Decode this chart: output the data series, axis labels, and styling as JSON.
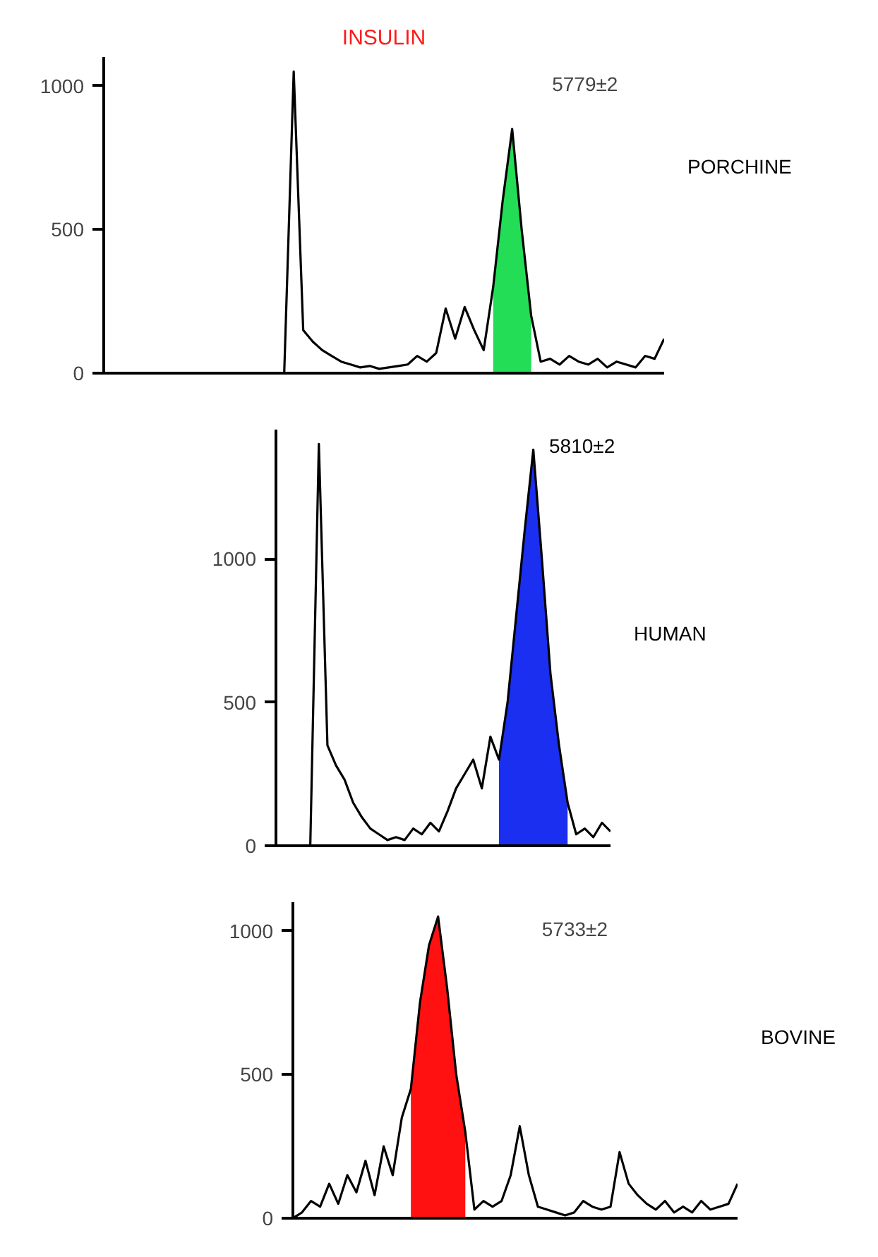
{
  "chart_data": [
    {
      "type": "line",
      "title": "INSULIN",
      "categories": [
        null,
        null,
        null,
        null,
        null,
        null,
        null,
        null,
        null,
        null,
        null,
        null,
        null,
        null,
        null,
        null,
        null,
        null,
        null,
        null,
        null,
        null,
        null,
        null,
        null,
        null,
        null,
        null,
        null,
        null,
        null,
        null,
        null,
        null,
        null,
        null,
        null,
        null,
        null,
        null,
        null,
        null,
        null,
        null,
        null,
        null,
        null,
        null,
        null,
        null,
        null,
        null,
        null,
        null,
        null,
        null,
        null,
        null,
        null,
        null
      ],
      "series": [
        {
          "color": "#22dd55",
          "type": "area",
          "values": [
            null,
            null,
            null,
            null,
            null,
            null,
            null,
            null,
            null,
            null,
            null,
            null,
            null,
            null,
            null,
            null,
            null,
            null,
            null,
            null,
            null,
            null,
            null,
            null,
            null,
            null,
            null,
            null,
            null,
            null,
            null,
            null,
            null,
            null,
            null,
            null,
            null,
            null,
            null,
            null,
            null,
            300,
            600,
            850,
            500,
            200,
            null,
            null,
            null,
            null,
            null,
            null,
            null,
            null,
            null,
            null,
            null,
            null,
            null,
            null
          ]
        },
        {
          "color": "#000000",
          "values": [
            0,
            0,
            0,
            0,
            0,
            0,
            0,
            0,
            0,
            0,
            0,
            0,
            0,
            0,
            0,
            0,
            0,
            0,
            0,
            0,
            1050,
            150,
            110,
            80,
            60,
            40,
            30,
            20,
            25,
            15,
            20,
            25,
            30,
            60,
            40,
            70,
            225,
            120,
            230,
            150,
            80,
            300,
            600,
            850,
            500,
            200,
            40,
            50,
            30,
            60,
            40,
            30,
            50,
            20,
            40,
            30,
            20,
            60,
            50,
            120
          ]
        }
      ],
      "ylim": [
        0,
        1100
      ],
      "yticks": [
        0,
        500,
        1000
      ],
      "tick_labels": "y",
      "grid": false,
      "annotations": [
        "5779±2",
        "PORCHINE"
      ]
    },
    {
      "type": "line",
      "categories": [
        null,
        null,
        null,
        null,
        null,
        null,
        null,
        null,
        null,
        null,
        null,
        null,
        null,
        null,
        null,
        null,
        null,
        null,
        null,
        null,
        null,
        null,
        null,
        null,
        null,
        null,
        null,
        null,
        null,
        null,
        null,
        null,
        null,
        null,
        null,
        null,
        null,
        null,
        null,
        null
      ],
      "series": [
        {
          "color": "#1a2ff0",
          "type": "area",
          "values": [
            null,
            null,
            null,
            null,
            null,
            null,
            null,
            null,
            null,
            null,
            null,
            null,
            null,
            null,
            null,
            null,
            null,
            null,
            null,
            null,
            null,
            null,
            null,
            null,
            null,
            null,
            300,
            500,
            800,
            1100,
            1380,
            1000,
            600,
            350,
            150,
            null,
            null,
            null,
            null,
            null
          ]
        },
        {
          "color": "#000000",
          "values": [
            0,
            0,
            0,
            0,
            0,
            1400,
            350,
            280,
            230,
            150,
            100,
            60,
            40,
            20,
            30,
            20,
            60,
            40,
            80,
            50,
            120,
            200,
            250,
            300,
            200,
            380,
            300,
            500,
            800,
            1100,
            1380,
            1000,
            600,
            350,
            150,
            40,
            60,
            30,
            80,
            50
          ]
        }
      ],
      "ylim": [
        0,
        1450
      ],
      "yticks": [
        0,
        500,
        1000
      ],
      "tick_labels": "y",
      "grid": false,
      "annotations": [
        "5810±2",
        "HUMAN"
      ]
    },
    {
      "type": "line",
      "categories": [
        null,
        null,
        null,
        null,
        null,
        null,
        null,
        null,
        null,
        null,
        null,
        null,
        null,
        null,
        null,
        null,
        null,
        null,
        null,
        null,
        null,
        null,
        null,
        null,
        null,
        null,
        null,
        null,
        null,
        null,
        null,
        null,
        null,
        null,
        null,
        null,
        null,
        null,
        null,
        null,
        null,
        null,
        null,
        null,
        null,
        null,
        null,
        null,
        null,
        null
      ],
      "series": [
        {
          "color": "#ff1111",
          "type": "area",
          "values": [
            null,
            null,
            null,
            null,
            null,
            null,
            null,
            null,
            null,
            null,
            null,
            null,
            null,
            450,
            750,
            950,
            1050,
            800,
            500,
            300,
            null,
            null,
            null,
            null,
            null,
            null,
            null,
            null,
            null,
            null,
            null,
            null,
            null,
            null,
            null,
            null,
            null,
            null,
            null,
            null,
            null,
            null,
            null,
            null,
            null,
            null,
            null,
            null,
            null,
            null
          ]
        },
        {
          "color": "#000000",
          "values": [
            0,
            20,
            60,
            40,
            120,
            50,
            150,
            90,
            200,
            80,
            250,
            150,
            350,
            450,
            750,
            950,
            1050,
            800,
            500,
            300,
            30,
            60,
            40,
            60,
            150,
            320,
            150,
            40,
            30,
            20,
            10,
            20,
            60,
            40,
            30,
            40,
            230,
            120,
            80,
            50,
            30,
            60,
            20,
            40,
            20,
            60,
            30,
            40,
            50,
            120
          ]
        }
      ],
      "ylim": [
        0,
        1100
      ],
      "yticks": [
        0,
        500,
        1000
      ],
      "tick_labels": "y",
      "grid": false,
      "annotations": [
        "5733±2",
        "BOVINE"
      ]
    }
  ]
}
